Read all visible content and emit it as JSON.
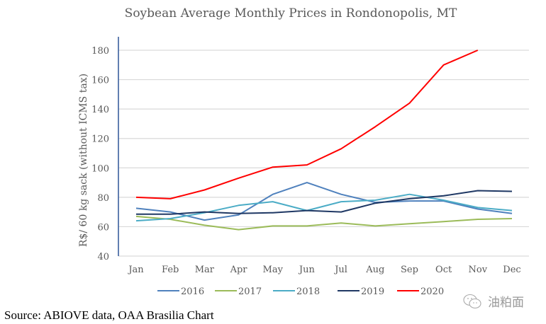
{
  "chart_data": {
    "type": "line",
    "title": "Soybean Average Monthly Prices in Rondonopolis, MT",
    "xlabel": "",
    "ylabel": "R$/ 60 kg sack (without ICMS tax)",
    "ylim": [
      40,
      180
    ],
    "yticks": [
      40,
      60,
      80,
      100,
      120,
      140,
      160,
      180
    ],
    "grid": true,
    "legend_position": "bottom",
    "categories": [
      "Jan",
      "Feb",
      "Mar",
      "Apr",
      "May",
      "Jun",
      "Jul",
      "Aug",
      "Sep",
      "Oct",
      "Nov",
      "Dec"
    ],
    "series": [
      {
        "name": "2016",
        "color": "#4F81BD",
        "values": [
          72.5,
          70,
          64.5,
          68,
          82,
          90,
          82,
          76.5,
          77.5,
          77.5,
          72,
          69
        ]
      },
      {
        "name": "2017",
        "color": "#9BBB59",
        "values": [
          67,
          65,
          61,
          58,
          60.5,
          60.5,
          62.5,
          60.5,
          62,
          63.5,
          65,
          65.5
        ]
      },
      {
        "name": "2018",
        "color": "#4BACC6",
        "values": [
          64,
          65.5,
          69.5,
          74.5,
          77,
          71,
          77,
          78,
          82,
          78,
          73,
          71
        ]
      },
      {
        "name": "2019",
        "color": "#1F3864",
        "values": [
          68.5,
          68.5,
          70,
          69,
          69.5,
          71,
          70,
          76,
          79,
          81,
          84.5,
          84
        ]
      },
      {
        "name": "2020",
        "color": "#FF0000",
        "values": [
          80,
          79,
          85,
          93,
          100.5,
          102,
          113,
          128,
          144,
          170,
          180,
          null
        ]
      }
    ]
  },
  "source": "Source: ABIOVE data, OAA Brasilia Chart",
  "watermark": {
    "icon": "wechat-icon",
    "text": "油粕面"
  }
}
